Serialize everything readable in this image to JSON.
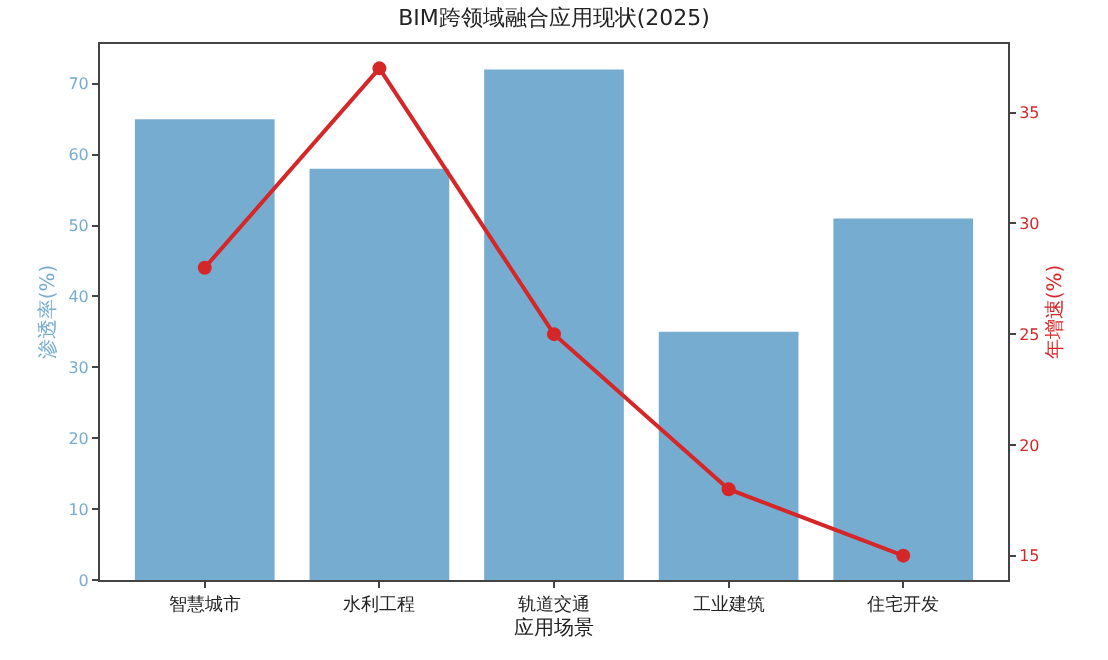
{
  "chart_data": {
    "type": "bar",
    "title": "BIM跨领域融合应用现状(2025)",
    "xlabel": "应用场景",
    "ylabel": "渗透率(%)",
    "y2label": "年增速(%)",
    "categories": [
      "智慧城市",
      "水利工程",
      "轨道交通",
      "工业建筑",
      "住宅开发"
    ],
    "series": [
      {
        "name": null,
        "color": "#77acd1",
        "values": [
          65,
          58,
          72,
          35,
          51
        ]
      },
      {
        "name": null,
        "type": "line",
        "axis": "y2",
        "color": "#d62728",
        "values": [
          28,
          37,
          25,
          18,
          15
        ],
        "marker": "circle",
        "line_style": "solid"
      }
    ],
    "ylim": [
      0,
      75.6
    ],
    "yticks": [
      0,
      10,
      20,
      30,
      40,
      50,
      60,
      70
    ],
    "y2lim": [
      13.9,
      38.1
    ],
    "y2ticks": [
      15,
      20,
      25,
      30,
      35
    ]
  }
}
